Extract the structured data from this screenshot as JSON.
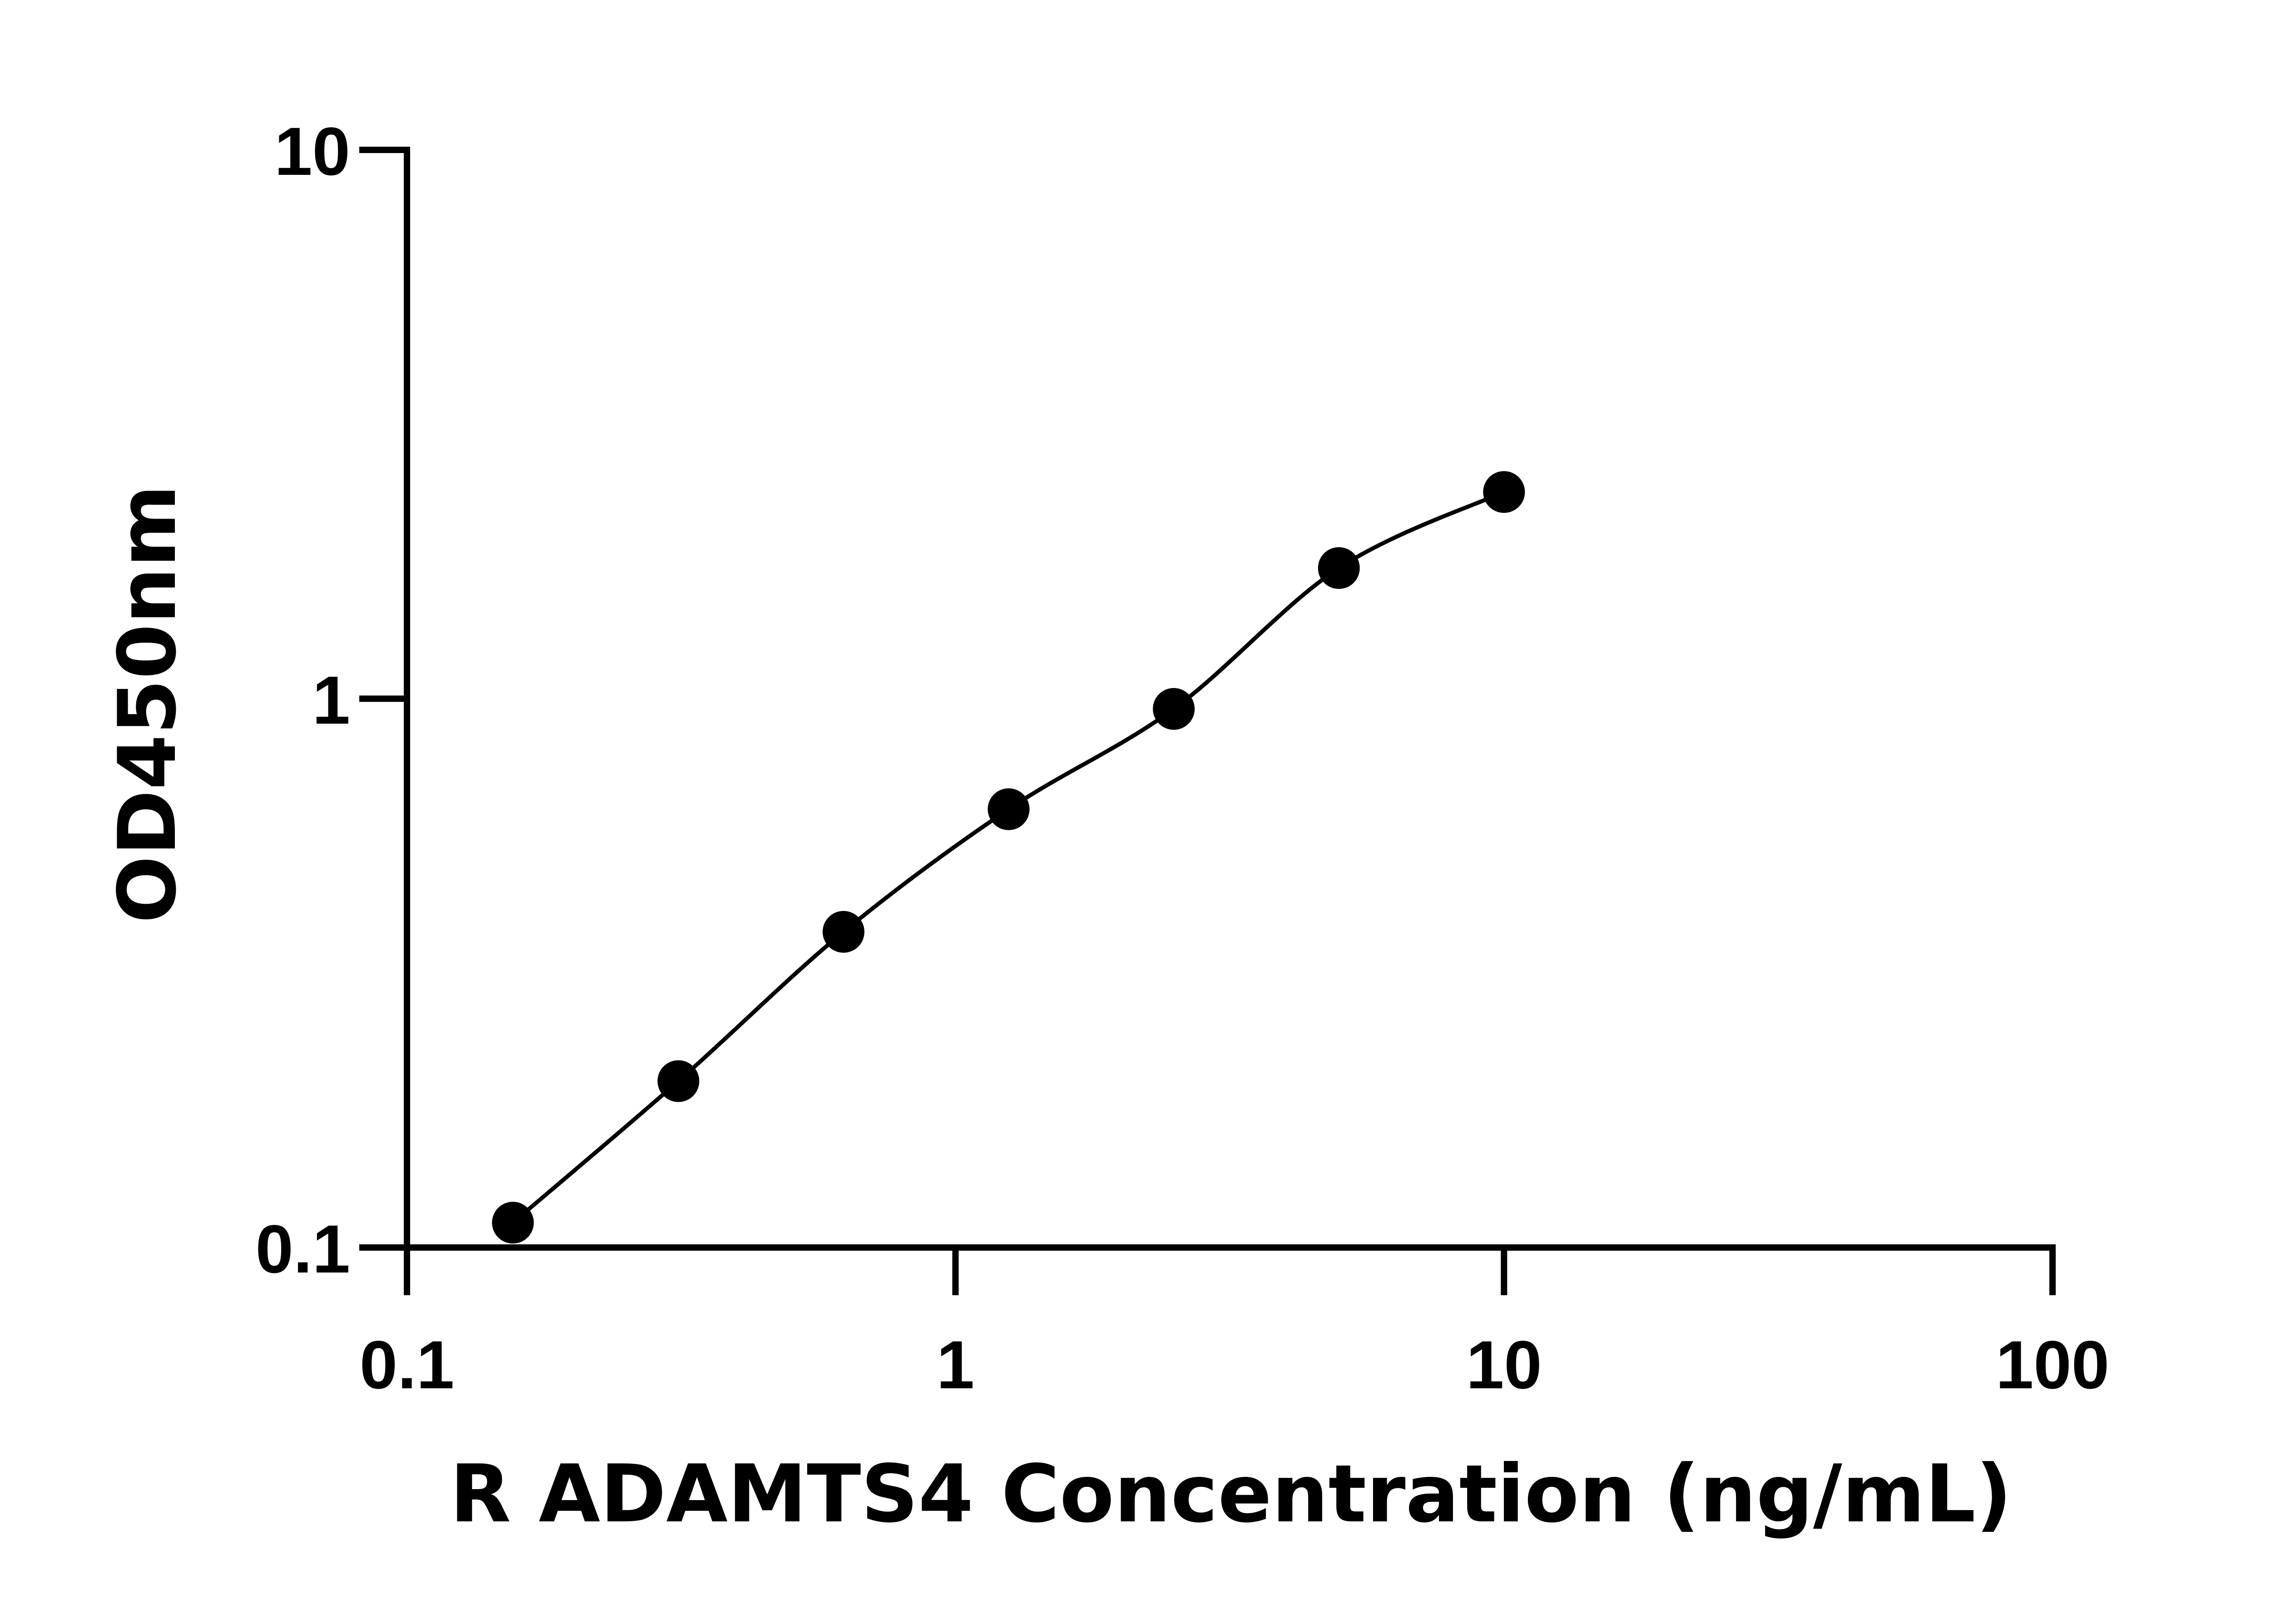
{
  "chart_data": {
    "type": "scatter",
    "title": "",
    "xlabel": "R ADAMTS4 Concentration (ng/mL)",
    "ylabel": "OD450nm",
    "x_scale": "log",
    "y_scale": "log",
    "xlim": [
      0.1,
      100
    ],
    "ylim": [
      0.1,
      10
    ],
    "x_ticks": [
      "0.1",
      "1",
      "10",
      "100"
    ],
    "y_ticks": [
      "0.1",
      "1",
      "10"
    ],
    "grid": false,
    "legend": "none",
    "series": [
      {
        "x": [
          0.156,
          0.3125,
          0.625,
          1.25,
          2.5,
          5,
          10
        ],
        "y": [
          0.111,
          0.201,
          0.376,
          0.629,
          0.958,
          1.73,
          2.38
        ],
        "marker": "circle",
        "color": "#000000",
        "fit_curve": true
      }
    ]
  }
}
